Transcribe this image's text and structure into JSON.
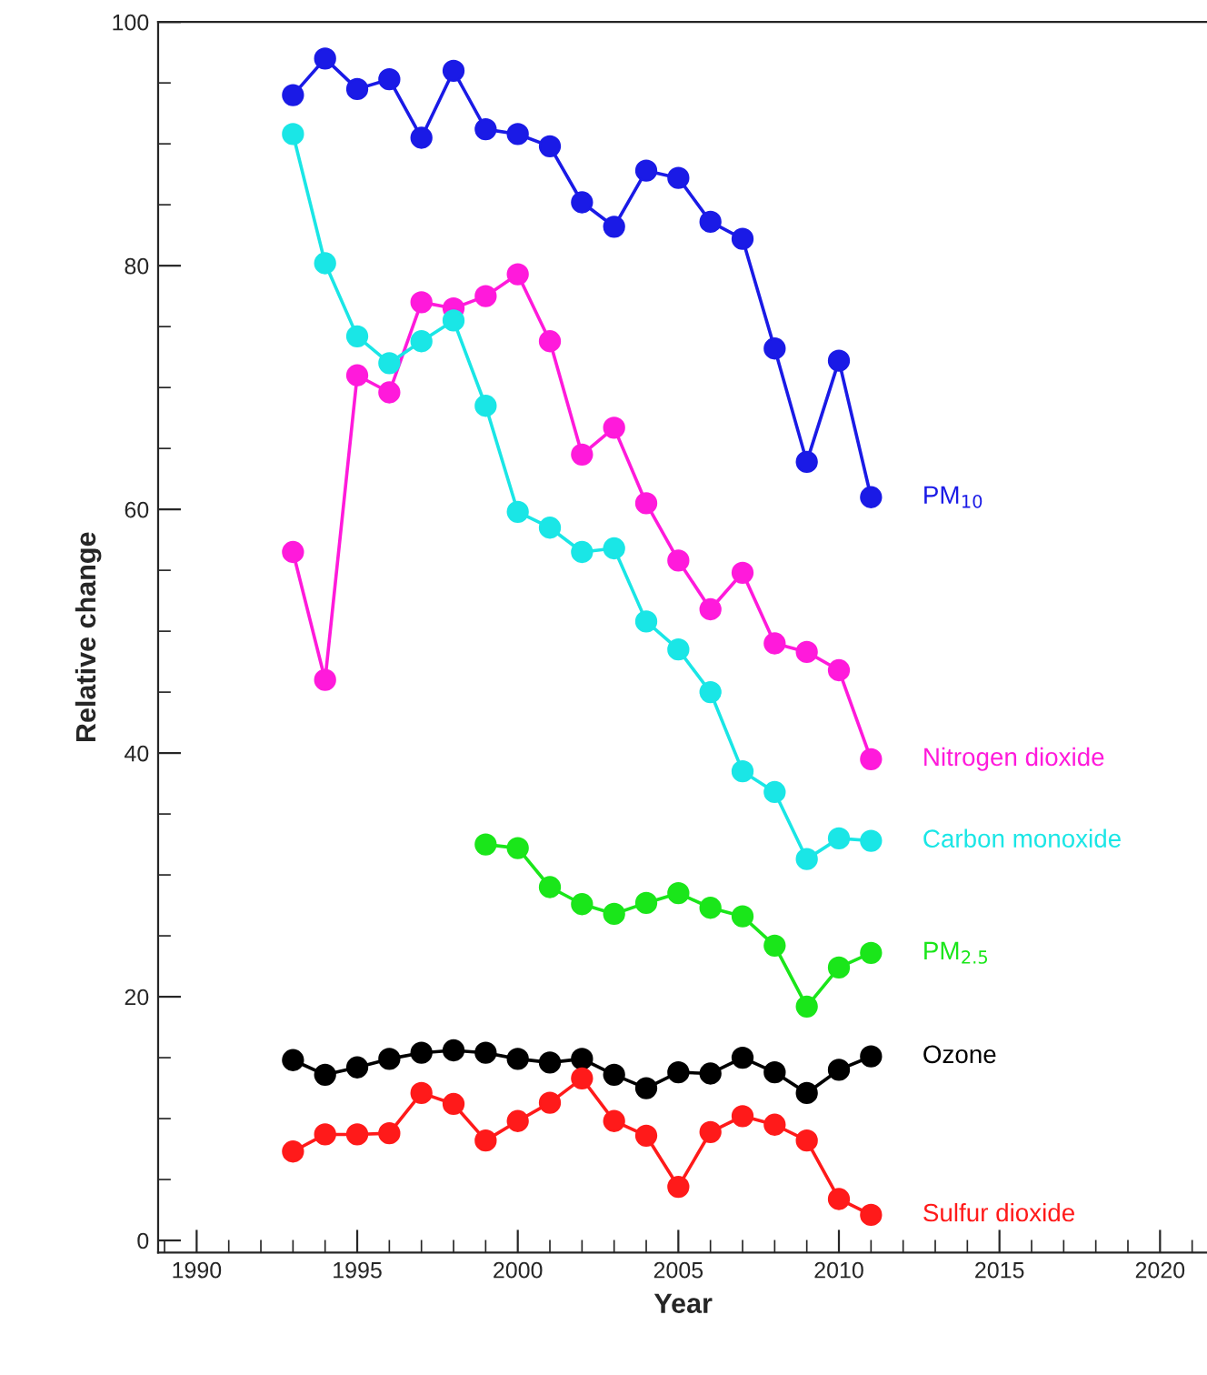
{
  "chart_data": {
    "type": "line",
    "xlabel": "Year",
    "ylabel": "Relative change",
    "xlim": [
      1988.8,
      2021.5
    ],
    "ylim": [
      -1,
      100
    ],
    "xticks": [
      1990,
      1995,
      2000,
      2005,
      2010,
      2015,
      2020
    ],
    "yticks": [
      0,
      20,
      40,
      60,
      80,
      100
    ],
    "grid": false,
    "legend": false,
    "marker": "circle",
    "line_style": "solid",
    "x": [
      1993,
      1994,
      1995,
      1996,
      1997,
      1998,
      1999,
      2000,
      2001,
      2002,
      2003,
      2004,
      2005,
      2006,
      2007,
      2008,
      2009,
      2010,
      2011
    ],
    "series": [
      {
        "name": "PM$_{10}$",
        "color": "#1a1ae6",
        "values": [
          94,
          97,
          94.5,
          95.3,
          90.5,
          96,
          91.2,
          90.8,
          89.8,
          85.2,
          83.2,
          87.8,
          87.2,
          83.6,
          82.2,
          73.2,
          63.9,
          72.2,
          61
        ]
      },
      {
        "name": "Nitrogen dioxide",
        "color": "#ff1adb",
        "values": [
          56.5,
          46,
          71,
          69.6,
          77,
          76.5,
          77.5,
          79.3,
          73.8,
          64.5,
          66.7,
          60.5,
          55.8,
          51.8,
          54.8,
          49,
          48.3,
          46.8,
          39.5
        ]
      },
      {
        "name": "Carbon monoxide",
        "color": "#1ae6e6",
        "values": [
          90.8,
          80.2,
          74.2,
          72,
          73.8,
          75.5,
          68.5,
          59.8,
          58.5,
          56.5,
          56.8,
          50.8,
          48.5,
          45,
          38.5,
          36.8,
          31.3,
          33,
          32.8
        ]
      },
      {
        "name": "PM$_{2.5}$",
        "color": "#1ae61a",
        "values": [
          null,
          null,
          null,
          null,
          null,
          null,
          32.5,
          32.2,
          29,
          27.6,
          26.8,
          27.7,
          28.5,
          27.3,
          26.6,
          24.2,
          19.2,
          22.4,
          23.6
        ]
      },
      {
        "name": "Ozone",
        "color": "#000000",
        "values": [
          14.8,
          13.6,
          14.2,
          14.9,
          15.4,
          15.6,
          15.4,
          14.9,
          14.6,
          14.9,
          13.6,
          12.5,
          13.8,
          13.7,
          15,
          13.8,
          12.1,
          14,
          15.1
        ]
      },
      {
        "name": "Sulfur dioxide",
        "color": "#ff1a1a",
        "values": [
          7.3,
          8.7,
          8.7,
          8.8,
          12.1,
          11.2,
          8.2,
          9.8,
          11.3,
          13.3,
          9.8,
          8.6,
          4.4,
          8.9,
          10.2,
          9.5,
          8.2,
          3.4,
          2.1
        ]
      }
    ]
  }
}
